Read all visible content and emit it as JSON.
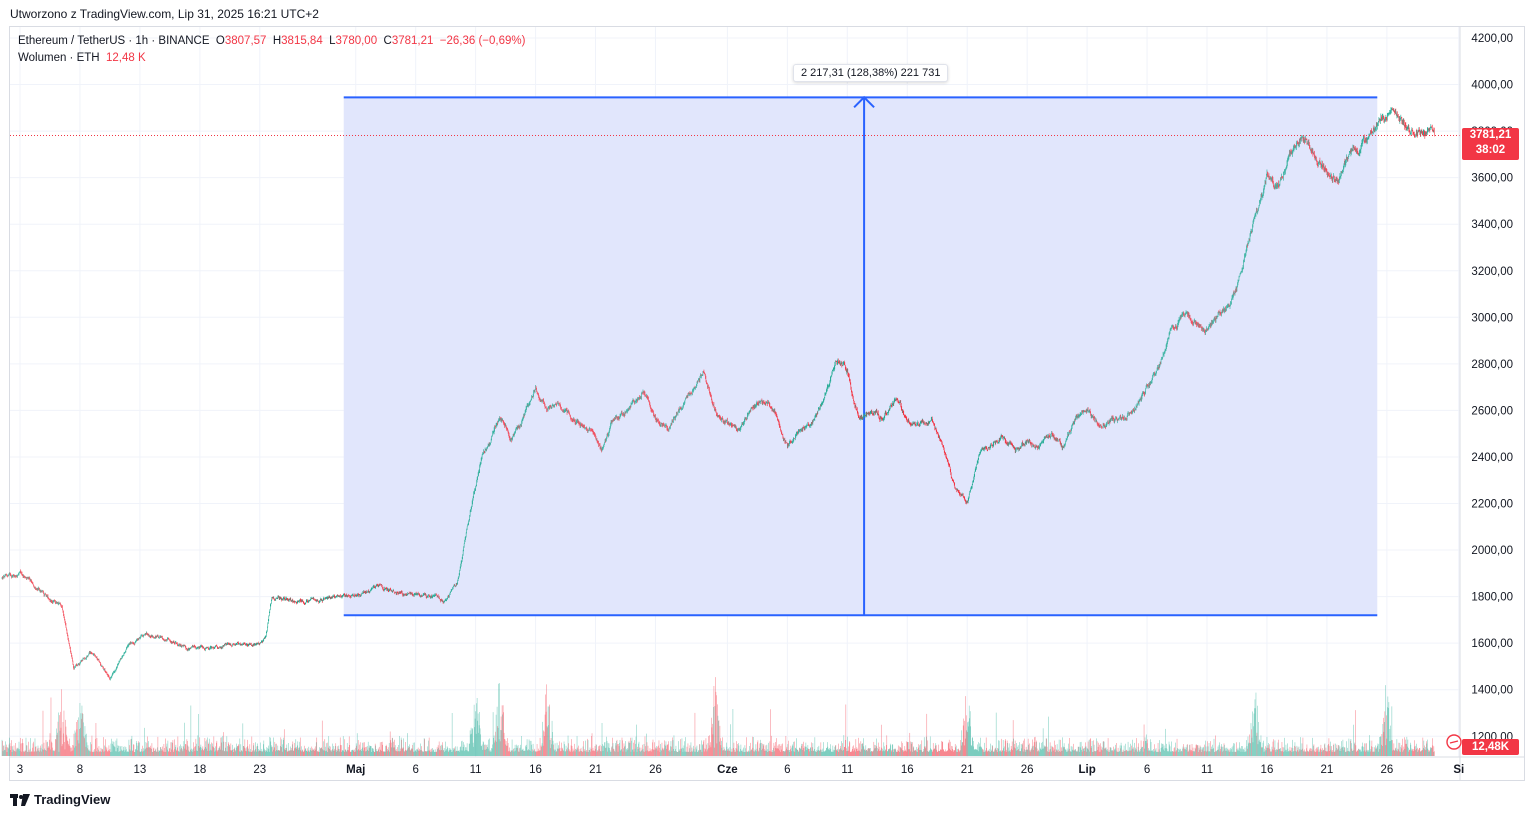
{
  "created_label": "Utworzono z TradingView.com, Lip 31, 2025 16:21 UTC+2",
  "legend": {
    "symbol": "Ethereum / TetherUS · 1h · BINANCE",
    "o_label": "O",
    "o_value": "3807,57",
    "h_label": "H",
    "h_value": "3815,84",
    "l_label": "L",
    "l_value": "3780,00",
    "c_label": "C",
    "c_value": "3781,21",
    "change": "−26,36 (−0,69%)",
    "volume_label": "Wolumen · ETH",
    "volume_value": "12,48 K"
  },
  "price_tag": {
    "price": "3781,21",
    "countdown": "38:02"
  },
  "volume_tag": "12,48K",
  "measure_label": "2 217,31 (128,38%) 221 731",
  "branding": "TradingView",
  "colors": {
    "up": "#22ab94",
    "down": "#f23645",
    "measure": "#2962ff",
    "measure_fill": "#dfe5fc"
  },
  "chart_data": {
    "type": "candlestick",
    "symbol": "Ethereum / TetherUS",
    "interval": "1h",
    "exchange": "BINANCE",
    "y_axis_ticks": [
      "4200,00",
      "4000,00",
      "3800,00",
      "3600,00",
      "3400,00",
      "3200,00",
      "3000,00",
      "2800,00",
      "2600,00",
      "2400,00",
      "2200,00",
      "2000,00",
      "1800,00",
      "1600,00",
      "1400,00",
      "1200,00"
    ],
    "y_tick_values": [
      4200,
      4000,
      3800,
      3600,
      3400,
      3200,
      3000,
      2800,
      2600,
      2400,
      2200,
      2000,
      1800,
      1600,
      1400,
      1200
    ],
    "ylim": [
      1100,
      4270
    ],
    "x_axis_ticks": [
      "3",
      "8",
      "13",
      "18",
      "23",
      "Maj",
      "6",
      "11",
      "16",
      "21",
      "26",
      "Cze",
      "6",
      "11",
      "16",
      "21",
      "26",
      "Lip",
      "6",
      "11",
      "16",
      "21",
      "26",
      "Si"
    ],
    "x_tick_days": [
      3,
      8,
      13,
      18,
      23,
      31,
      36,
      41,
      46,
      51,
      56,
      62,
      67,
      72,
      77,
      82,
      87,
      92,
      97,
      102,
      107,
      112,
      117,
      123
    ],
    "day_range": [
      1.3,
      123.3
    ],
    "price_path": [
      [
        1.5,
        1880
      ],
      [
        3,
        1900
      ],
      [
        5,
        1810
      ],
      [
        6.5,
        1760
      ],
      [
        7.5,
        1500
      ],
      [
        9,
        1560
      ],
      [
        10.5,
        1450
      ],
      [
        12,
        1590
      ],
      [
        13.5,
        1640
      ],
      [
        15,
        1620
      ],
      [
        17,
        1580
      ],
      [
        19,
        1580
      ],
      [
        21,
        1600
      ],
      [
        23,
        1590
      ],
      [
        23.5,
        1620
      ],
      [
        24,
        1790
      ],
      [
        26,
        1780
      ],
      [
        28,
        1790
      ],
      [
        30,
        1800
      ],
      [
        31,
        1810
      ],
      [
        33,
        1840
      ],
      [
        35,
        1810
      ],
      [
        37,
        1800
      ],
      [
        38.5,
        1780
      ],
      [
        39.5,
        1870
      ],
      [
        40.5,
        2150
      ],
      [
        41.5,
        2400
      ],
      [
        43,
        2570
      ],
      [
        44,
        2480
      ],
      [
        45,
        2570
      ],
      [
        46,
        2700
      ],
      [
        47,
        2600
      ],
      [
        48,
        2620
      ],
      [
        49,
        2560
      ],
      [
        50.5,
        2520
      ],
      [
        51.5,
        2430
      ],
      [
        52.5,
        2560
      ],
      [
        54,
        2620
      ],
      [
        55,
        2690
      ],
      [
        56,
        2560
      ],
      [
        57,
        2530
      ],
      [
        58,
        2600
      ],
      [
        59,
        2680
      ],
      [
        60,
        2760
      ],
      [
        61,
        2600
      ],
      [
        62,
        2540
      ],
      [
        63,
        2510
      ],
      [
        64,
        2620
      ],
      [
        65,
        2640
      ],
      [
        66,
        2590
      ],
      [
        67,
        2440
      ],
      [
        68,
        2520
      ],
      [
        69,
        2550
      ],
      [
        70,
        2640
      ],
      [
        71,
        2820
      ],
      [
        72,
        2770
      ],
      [
        73,
        2560
      ],
      [
        74,
        2600
      ],
      [
        75,
        2570
      ],
      [
        76,
        2640
      ],
      [
        77,
        2570
      ],
      [
        78,
        2530
      ],
      [
        79,
        2560
      ],
      [
        80,
        2450
      ],
      [
        81,
        2260
      ],
      [
        82,
        2200
      ],
      [
        83,
        2420
      ],
      [
        84,
        2450
      ],
      [
        85,
        2490
      ],
      [
        86,
        2440
      ],
      [
        87,
        2460
      ],
      [
        88,
        2450
      ],
      [
        89,
        2500
      ],
      [
        90,
        2440
      ],
      [
        91,
        2560
      ],
      [
        92,
        2610
      ],
      [
        93,
        2530
      ],
      [
        94,
        2560
      ],
      [
        95,
        2560
      ],
      [
        96,
        2600
      ],
      [
        97,
        2700
      ],
      [
        98,
        2790
      ],
      [
        99,
        2950
      ],
      [
        100,
        3010
      ],
      [
        101,
        2980
      ],
      [
        102,
        2950
      ],
      [
        103,
        3010
      ],
      [
        104,
        3050
      ],
      [
        105,
        3230
      ],
      [
        106,
        3420
      ],
      [
        107,
        3600
      ],
      [
        108,
        3560
      ],
      [
        109,
        3720
      ],
      [
        110,
        3780
      ],
      [
        111,
        3700
      ],
      [
        112,
        3620
      ],
      [
        113,
        3600
      ],
      [
        114,
        3700
      ],
      [
        115,
        3740
      ],
      [
        116,
        3820
      ],
      [
        117,
        3860
      ],
      [
        117.5,
        3920
      ],
      [
        118.5,
        3830
      ],
      [
        119.5,
        3800
      ],
      [
        120.5,
        3810
      ],
      [
        121,
        3781
      ]
    ],
    "volume_peak_days": [
      6.5,
      8,
      41,
      43,
      47,
      61,
      82,
      106,
      117
    ],
    "current_price": 3781.21,
    "ohlc_last": {
      "open": 3807.57,
      "high": 3815.84,
      "low": 3780.0,
      "close": 3781.21
    },
    "change": -26.36,
    "change_pct": -0.69,
    "volume_last_k": 12.48,
    "measure": {
      "low_price": 1720,
      "high_price": 3945,
      "start_day": 30,
      "end_day": 116.2,
      "mid_day": 73.4,
      "change": 2217.31,
      "change_pct": 128.38,
      "volume": 221731
    },
    "title": "",
    "xlabel": "",
    "ylabel": ""
  }
}
